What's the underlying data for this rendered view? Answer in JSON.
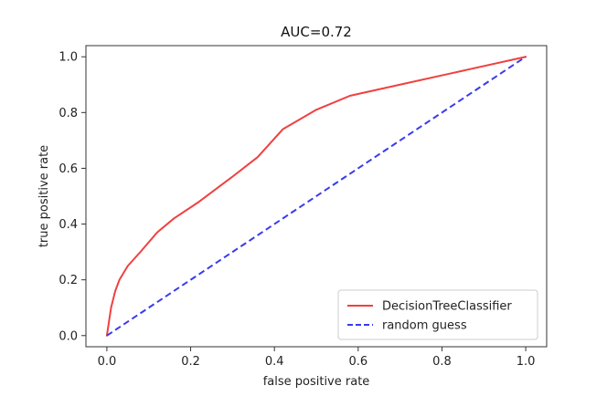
{
  "chart_data": {
    "type": "line",
    "title": "AUC=0.72",
    "xlabel": "false positive rate",
    "ylabel": "true positive rate",
    "xlim": [
      -0.05,
      1.05
    ],
    "ylim": [
      -0.04,
      1.04
    ],
    "xticks": [
      0.0,
      0.2,
      0.4,
      0.6,
      0.8,
      1.0
    ],
    "yticks": [
      0.0,
      0.2,
      0.4,
      0.6,
      0.8,
      1.0
    ],
    "xtick_labels": [
      "0.0",
      "0.2",
      "0.4",
      "0.6",
      "0.8",
      "1.0"
    ],
    "ytick_labels": [
      "0.0",
      "0.2",
      "0.4",
      "0.6",
      "0.8",
      "1.0"
    ],
    "grid": false,
    "legend_position": "bottom-right",
    "series": [
      {
        "name": "DecisionTreeClassifier",
        "color": "#f04040",
        "line_style": "solid",
        "x": [
          0.0,
          0.005,
          0.01,
          0.02,
          0.03,
          0.05,
          0.08,
          0.12,
          0.16,
          0.22,
          0.3,
          0.36,
          0.42,
          0.5,
          0.58,
          0.7,
          0.82,
          1.0
        ],
        "y": [
          0.0,
          0.05,
          0.1,
          0.16,
          0.2,
          0.25,
          0.3,
          0.37,
          0.42,
          0.48,
          0.57,
          0.64,
          0.74,
          0.81,
          0.86,
          0.9,
          0.94,
          1.0
        ]
      },
      {
        "name": "random guess",
        "color": "#3a3aee",
        "line_style": "dashed",
        "x": [
          0.0,
          1.0
        ],
        "y": [
          0.0,
          1.0
        ]
      }
    ]
  }
}
